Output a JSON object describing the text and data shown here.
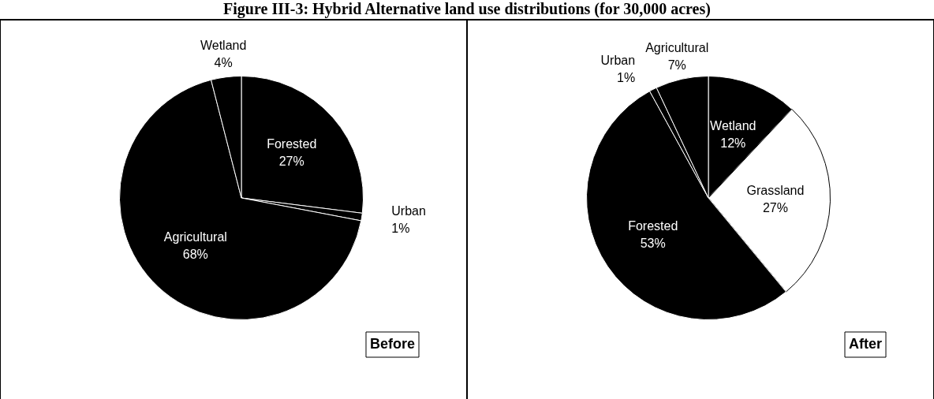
{
  "chart_data": [
    {
      "type": "pie",
      "title": "Figure III-3: Hybrid Alternative land use distributions (for 30,000 acres)",
      "categories": [
        "Forested",
        "Urban",
        "Agricultural",
        "Wetland"
      ],
      "values": [
        27,
        1,
        68,
        4
      ],
      "value_labels": [
        "27%",
        "1%",
        "68%",
        "4%"
      ],
      "colors": [
        "#000000",
        "#000000",
        "#000000",
        "#000000"
      ],
      "annotations": [
        "Before"
      ]
    },
    {
      "type": "pie",
      "categories": [
        "Wetland",
        "Grassland",
        "Forested",
        "Urban",
        "Agricultural"
      ],
      "values": [
        12,
        27,
        53,
        1,
        7
      ],
      "value_labels": [
        "12%",
        "27%",
        "53%",
        "1%",
        "7%"
      ],
      "colors": [
        "#000000",
        "#ffffff",
        "#000000",
        "#000000",
        "#000000"
      ],
      "annotations": [
        "After"
      ]
    }
  ]
}
